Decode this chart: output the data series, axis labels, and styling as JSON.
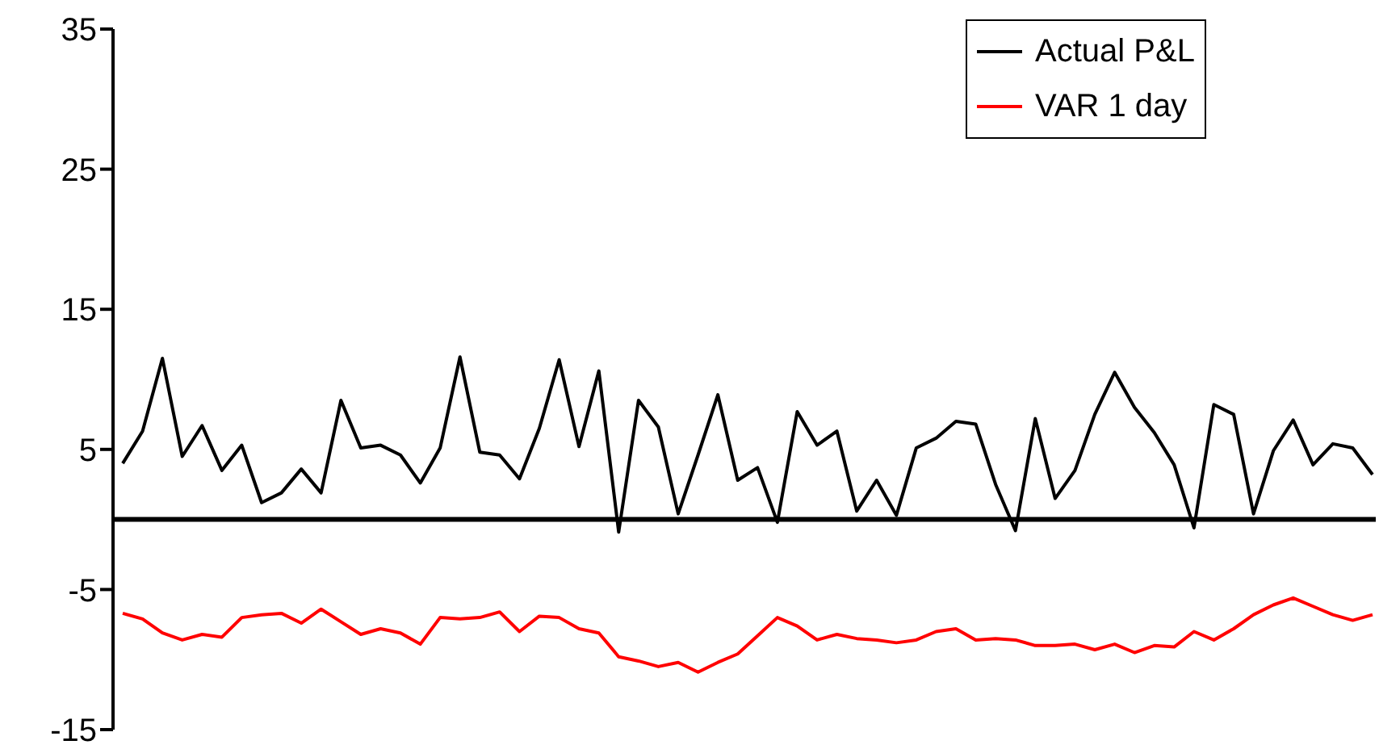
{
  "chart_data": {
    "type": "line",
    "categories": [
      null,
      null,
      null,
      null,
      null,
      null,
      null,
      null,
      null,
      null,
      null,
      null,
      null,
      null,
      null,
      null,
      null,
      null,
      null,
      null,
      null,
      null,
      null,
      null,
      null,
      null,
      null,
      null,
      null,
      null,
      null,
      null,
      null,
      null,
      null,
      null,
      null,
      null,
      null,
      null,
      null,
      null,
      null,
      null,
      null,
      null,
      null,
      null,
      null,
      null,
      null,
      null,
      null,
      null,
      null,
      null,
      null,
      null,
      null,
      null,
      null,
      null,
      null,
      null
    ],
    "series": [
      {
        "name": "Actual P&L",
        "color": "#000000",
        "values": [
          4.0,
          6.3,
          11.5,
          4.5,
          6.7,
          3.5,
          5.3,
          1.2,
          1.9,
          3.6,
          1.9,
          8.5,
          5.1,
          5.3,
          4.6,
          2.6,
          5.1,
          11.6,
          4.8,
          4.6,
          2.9,
          6.5,
          11.4,
          5.2,
          10.6,
          -0.9,
          8.5,
          6.6,
          0.4,
          4.6,
          8.9,
          2.8,
          3.7,
          -0.2,
          7.7,
          5.3,
          6.3,
          0.6,
          2.8,
          0.3,
          5.1,
          5.8,
          7.0,
          6.8,
          2.5,
          -0.8,
          7.2,
          1.5,
          3.5,
          7.5,
          10.5,
          8.0,
          6.2,
          3.9,
          -0.6,
          8.2,
          7.5,
          0.4,
          4.9,
          7.1,
          3.9,
          5.4,
          5.1,
          3.2
        ]
      },
      {
        "name": "VAR 1 day",
        "color": "#ff0000",
        "values": [
          -6.7,
          -7.1,
          -8.1,
          -8.6,
          -8.2,
          -8.4,
          -7.0,
          -6.8,
          -6.7,
          -7.4,
          -6.4,
          -7.3,
          -8.2,
          -7.8,
          -8.1,
          -8.9,
          -7.0,
          -7.1,
          -7.0,
          -6.6,
          -8.0,
          -6.9,
          -7.0,
          -7.8,
          -8.1,
          -9.8,
          -10.1,
          -10.5,
          -10.2,
          -10.9,
          -10.2,
          -9.6,
          -8.3,
          -7.0,
          -7.6,
          -8.6,
          -8.2,
          -8.5,
          -8.6,
          -8.8,
          -8.6,
          -8.0,
          -7.8,
          -8.6,
          -8.5,
          -8.6,
          -9.0,
          -9.0,
          -8.9,
          -9.3,
          -8.9,
          -9.5,
          -9.0,
          -9.1,
          -8.0,
          -8.6,
          -7.8,
          -6.8,
          -6.1,
          -5.6,
          -6.2,
          -6.8,
          -7.2,
          -6.8
        ]
      }
    ],
    "ylim": [
      -15,
      35
    ],
    "yticks": [
      35,
      25,
      15,
      5,
      -5,
      -15
    ],
    "ref_lines": [
      {
        "axis": "y",
        "value": 0,
        "color": "#000000"
      }
    ],
    "tick_labels": "y",
    "grid": false,
    "legend": "top right",
    "marker": "none",
    "line_style": "solid"
  }
}
